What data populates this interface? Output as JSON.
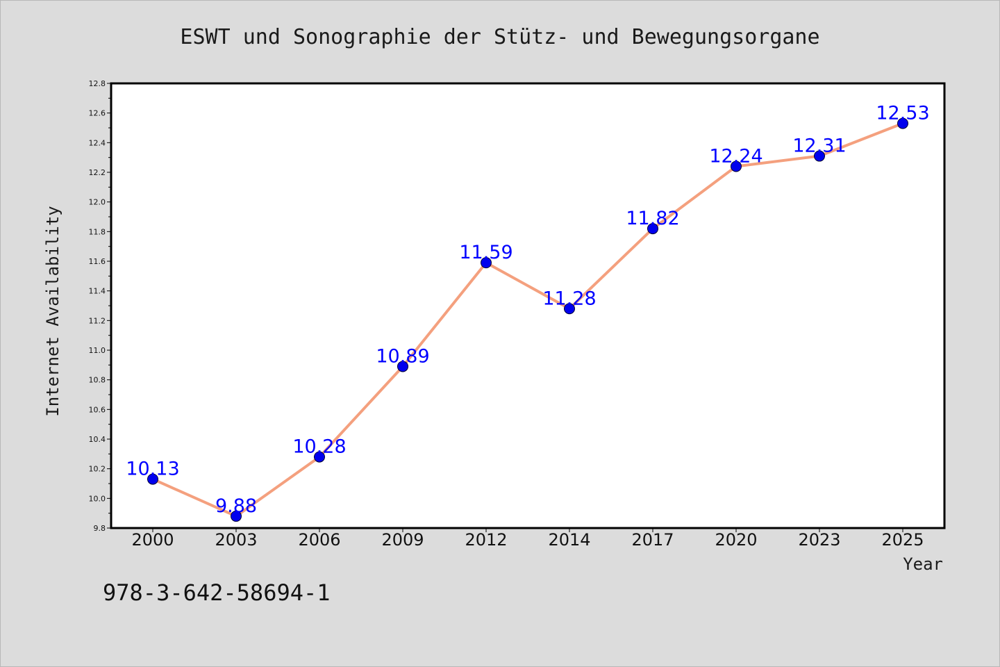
{
  "chart_data": {
    "type": "line",
    "title": "ESWT und Sonographie der Stütz- und Bewegungsorgane",
    "xlabel": "Year",
    "ylabel": "Internet Availability",
    "categories": [
      "2000",
      "2003",
      "2006",
      "2009",
      "2012",
      "2014",
      "2017",
      "2020",
      "2023",
      "2025"
    ],
    "series": [
      {
        "values": [
          10.13,
          9.88,
          10.28,
          10.89,
          11.59,
          11.28,
          11.82,
          12.24,
          12.31,
          12.53
        ],
        "labels": [
          "10.13",
          "9.88",
          "10.28",
          "10.89",
          "11.59",
          "11.28",
          "11.82",
          "12.24",
          "12.31",
          "12.53"
        ]
      }
    ],
    "ylim": [
      9.8,
      12.8
    ],
    "y_ticks": [
      "9.8",
      "10.0",
      "10.2",
      "10.4",
      "10.6",
      "10.8",
      "11.0",
      "11.2",
      "11.4",
      "11.6",
      "11.8",
      "12.0",
      "12.2",
      "12.4",
      "12.6",
      "12.8"
    ],
    "grid": false,
    "legend": "none",
    "colors": {
      "line": "#f4a07e",
      "marker": "#0000ee",
      "data_label": "#0000ff",
      "background": "#dcdcdc",
      "plot_background": "#ffffff"
    }
  },
  "footer": {
    "isbn": "978-3-642-58694-1"
  }
}
